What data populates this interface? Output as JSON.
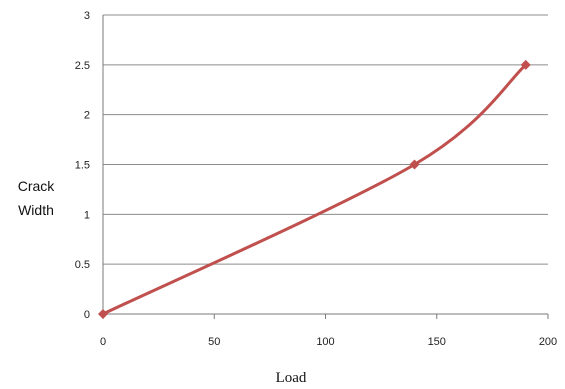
{
  "chart_data": {
    "type": "line",
    "title": "",
    "xlabel": "Load",
    "ylabel_lines": [
      "Crack",
      "Width"
    ],
    "xlim": [
      0,
      200
    ],
    "ylim": [
      0,
      3
    ],
    "x_ticks": [
      0,
      50,
      100,
      150,
      200
    ],
    "y_ticks": [
      0,
      0.5,
      1,
      1.5,
      2,
      2.5,
      3
    ],
    "grid": "horizontal",
    "legend": "none",
    "series": [
      {
        "points": [
          {
            "x": 0,
            "y": 0
          },
          {
            "x": 140,
            "y": 1.5
          },
          {
            "x": 190,
            "y": 2.5
          }
        ],
        "color": "#c0504d",
        "marker": "diamond"
      }
    ]
  }
}
